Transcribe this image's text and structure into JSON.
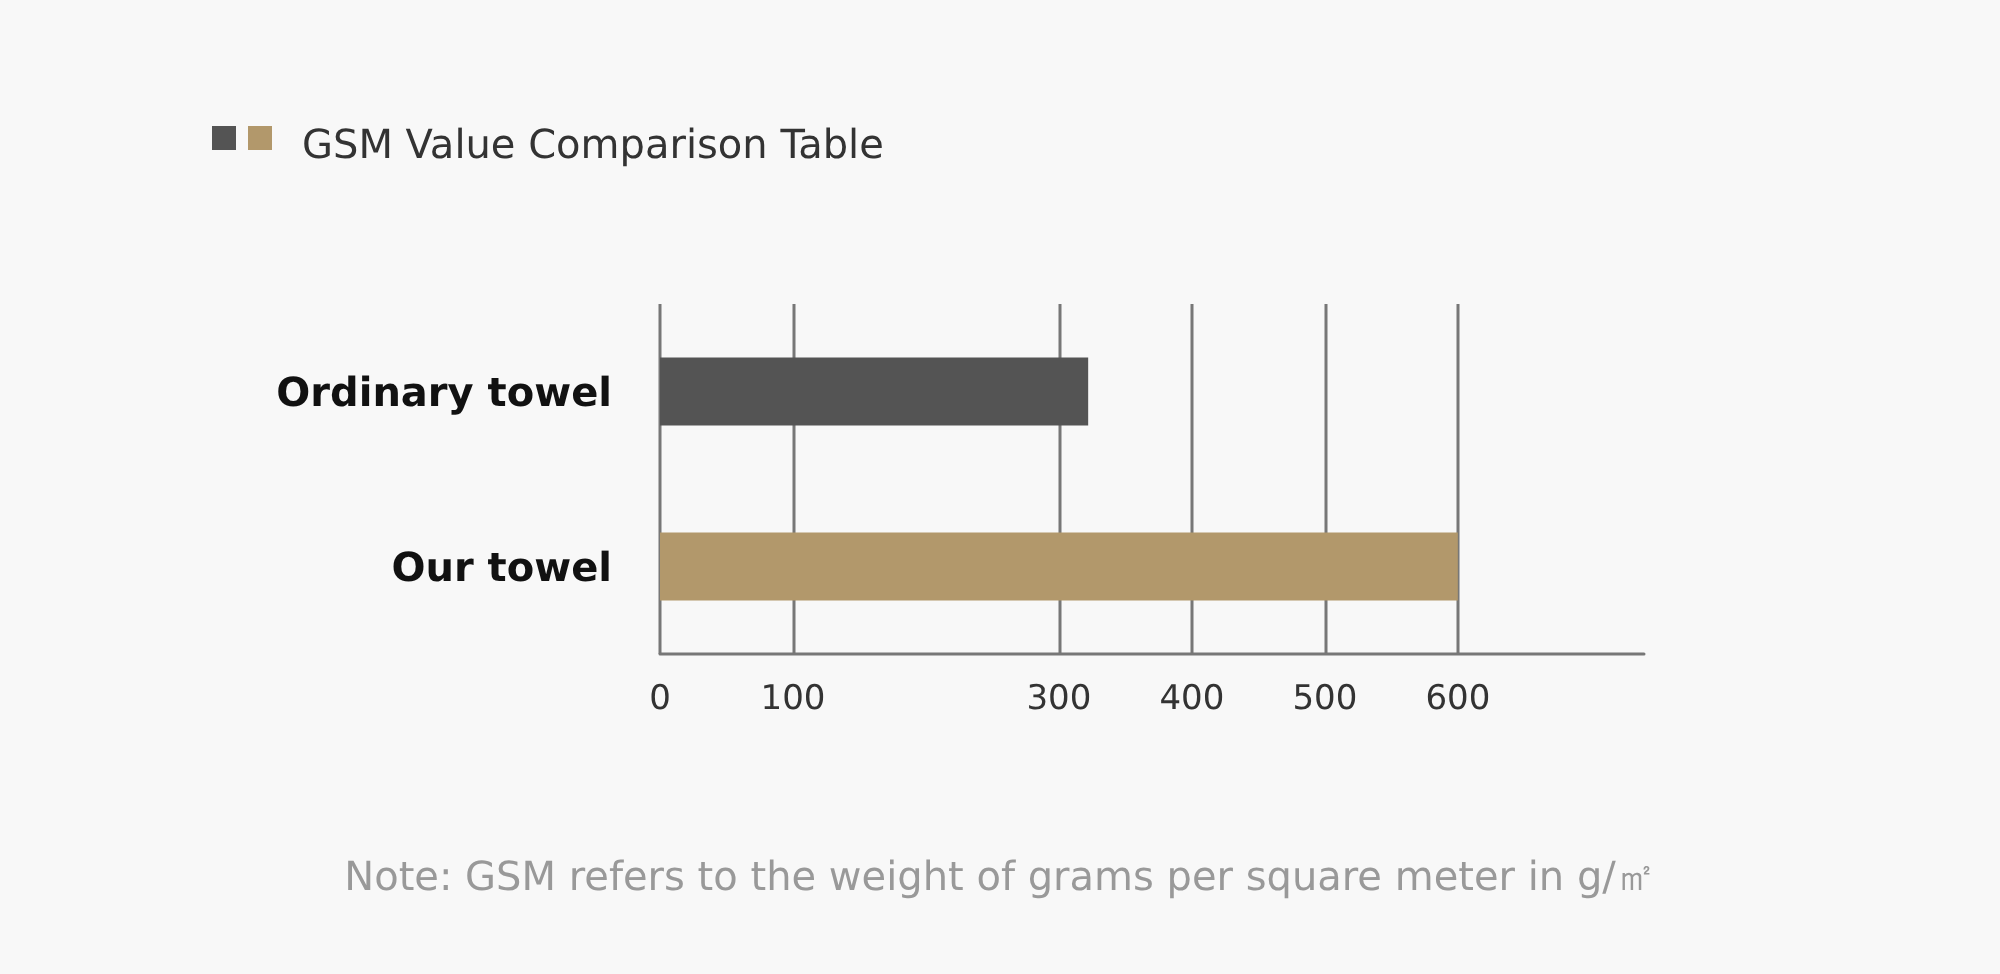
{
  "chart_data": {
    "type": "bar",
    "orientation": "horizontal",
    "title": "GSM Value Comparison Table",
    "categories": [
      "Ordinary towel",
      "Our towel"
    ],
    "values": [
      322,
      600
    ],
    "colors": [
      "#545454",
      "#b2986b"
    ],
    "xlim": [
      0,
      740
    ],
    "xticks": [
      0,
      100,
      300,
      400,
      500,
      600
    ],
    "grid": "x",
    "annotations": [
      "Note: GSM refers to the weight of grams per square meter in g/㎡"
    ]
  }
}
